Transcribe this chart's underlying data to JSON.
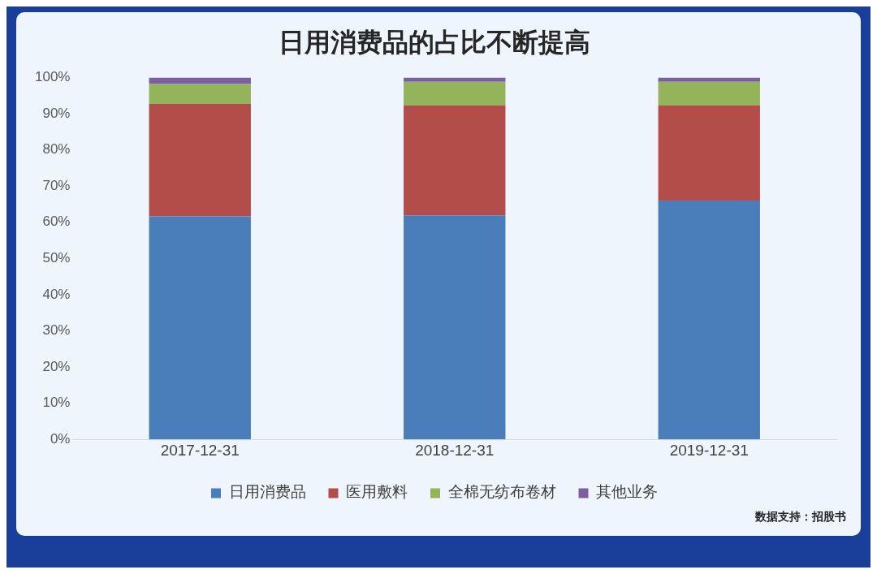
{
  "chart_data": {
    "type": "bar",
    "title": "日用消费品的占比不断提高",
    "categories": [
      "2017-12-31",
      "2018-12-31",
      "2019-12-31"
    ],
    "stacked": true,
    "series": [
      {
        "name": "日用消费品",
        "color": "#4a7ebb",
        "values": [
          61.6,
          61.9,
          66.0
        ]
      },
      {
        "name": "医用敷料",
        "color": "#b24d4a",
        "values": [
          31.1,
          30.4,
          26.3
        ]
      },
      {
        "name": "全棉无纺布卷材",
        "color": "#93b45a",
        "values": [
          5.5,
          6.5,
          6.5
        ]
      },
      {
        "name": "其他业务",
        "color": "#7b5fa0",
        "values": [
          1.8,
          1.2,
          1.2
        ]
      }
    ],
    "ylim": [
      0,
      100
    ],
    "yticks": [
      {
        "value": 0,
        "label": "0%"
      },
      {
        "value": 10,
        "label": "10%"
      },
      {
        "value": 20,
        "label": "20%"
      },
      {
        "value": 30,
        "label": "30%"
      },
      {
        "value": 40,
        "label": "40%"
      },
      {
        "value": 50,
        "label": "50%"
      },
      {
        "value": 60,
        "label": "60%"
      },
      {
        "value": 70,
        "label": "70%"
      },
      {
        "value": 80,
        "label": "80%"
      },
      {
        "value": 90,
        "label": "90%"
      },
      {
        "value": 100,
        "label": "100%"
      }
    ],
    "grid": false,
    "legend": "bottom",
    "annotations": [
      "数据支持：招股书"
    ]
  }
}
